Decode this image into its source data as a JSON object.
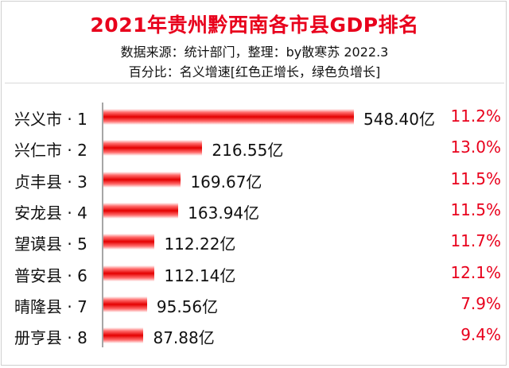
{
  "title": "2021年贵州黔西南各市县GDP排名",
  "subtitle1": "数据来源：统计部门，整理：by散寒苏 2022.3",
  "subtitle2": "百分比：名义增速[红色正增长，绿色负增长]",
  "colors": {
    "title": "#e8001c",
    "bar": "#e40000",
    "positive_growth": "#e8001c",
    "negative_growth": "#00a040"
  },
  "chart_data": {
    "type": "bar",
    "orientation": "horizontal",
    "categories": [
      "兴义市 · 1",
      "兴仁市 · 2",
      "贞丰县 · 3",
      "安龙县 · 4",
      "望谟县 · 5",
      "普安县 · 6",
      "晴隆县 · 7",
      "册亨县 · 8"
    ],
    "values": [
      548.4,
      216.55,
      169.67,
      163.94,
      112.22,
      112.14,
      95.56,
      87.88
    ],
    "value_labels": [
      "548.40亿",
      "216.55亿",
      "169.67亿",
      "163.94亿",
      "112.22亿",
      "112.14亿",
      "95.56亿",
      "87.88亿"
    ],
    "growth": [
      11.2,
      13.0,
      11.5,
      11.5,
      11.7,
      12.1,
      7.9,
      9.4
    ],
    "growth_labels": [
      "11.2%",
      "13.0%",
      "11.5%",
      "11.5%",
      "11.7%",
      "12.1%",
      "7.9%",
      "9.4%"
    ],
    "unit": "亿",
    "xlim": [
      0,
      548.4
    ],
    "grid": false,
    "legend": "none"
  }
}
